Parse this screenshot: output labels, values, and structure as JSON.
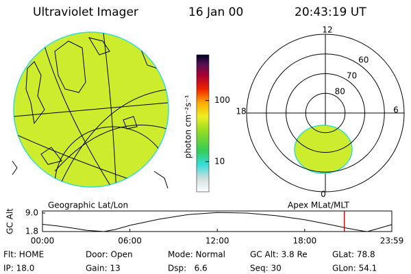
{
  "header": {
    "title": "Ultraviolet Imager",
    "date": "16 Jan 00",
    "time": "20:43:19 UT"
  },
  "left_panel": {
    "caption": "Geographic Lat/Lon"
  },
  "colorbar": {
    "label": "photon cm⁻²s⁻¹",
    "lim": [
      3.2,
      560
    ],
    "log": true,
    "ticks": [
      10,
      100
    ]
  },
  "polar": {
    "caption": "Apex MLat/MLT",
    "mlt_labels": [
      "12",
      "6",
      "0",
      "18"
    ],
    "mlat_lim": [
      50,
      90
    ],
    "mlat_rings": [
      60,
      70,
      80
    ]
  },
  "chart_data": {
    "type": "line",
    "ylabel": "GC Alt",
    "x": [
      0,
      1,
      2,
      3,
      4,
      4.2,
      5,
      6,
      8,
      10,
      12,
      14,
      16,
      18,
      20,
      21,
      22,
      22.3,
      23,
      23.98
    ],
    "values": [
      4.6,
      4.0,
      3.2,
      2.3,
      1.9,
      1.8,
      2.6,
      4.2,
      6.6,
      8.4,
      9.2,
      9.0,
      8.0,
      6.4,
      4.2,
      3.0,
      2.0,
      1.8,
      2.9,
      4.5
    ],
    "color": "#000000",
    "xlim": [
      0,
      23.98
    ],
    "ylim": [
      1.8,
      9.8
    ],
    "xticks": [
      {
        "value": 0,
        "label": "00:00"
      },
      {
        "value": 6,
        "label": "06:00"
      },
      {
        "value": 12,
        "label": "12:00"
      },
      {
        "value": 18,
        "label": "18:00"
      },
      {
        "value": 23.98,
        "label": "23:59"
      }
    ],
    "yticks": [
      {
        "value": 9,
        "label": "9.0"
      },
      {
        "value": 1.8,
        "label": "1.8"
      }
    ],
    "marker_x": 20.72,
    "marker_color": "#dd0000"
  },
  "info": {
    "rows": [
      [
        "Flt: HOME",
        "Door: Open",
        "Mode: Normal",
        "GC Alt: 3.8 Re",
        "GLat: 78.8"
      ],
      [
        "IP: 18.0",
        "Gain: 13",
        "Dsp:   6.6",
        "Seq: 30",
        "GLon: 54.1"
      ]
    ]
  }
}
